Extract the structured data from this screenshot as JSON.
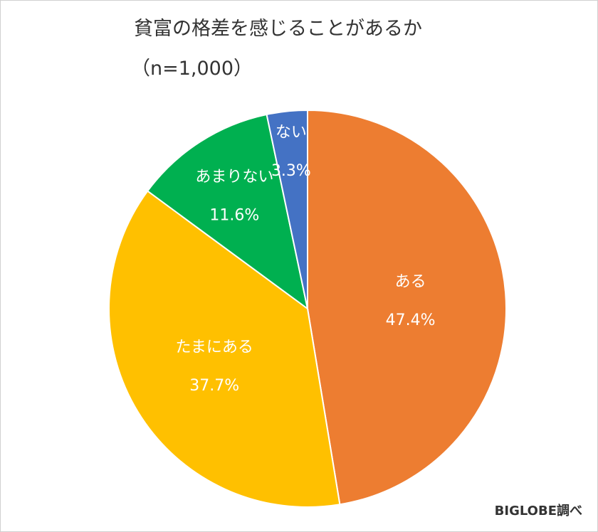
{
  "chart_data": {
    "type": "pie",
    "title": "貧富の格差を感じることがあるか",
    "subtitle": "（n=1,000）",
    "source": "BIGLOBE調べ",
    "unit": "%",
    "slices": [
      {
        "label": "ある",
        "value": 47.4,
        "display": "47.4%",
        "color": "#ED7D31"
      },
      {
        "label": "たまにある",
        "value": 37.7,
        "display": "37.7%",
        "color": "#FFC000"
      },
      {
        "label": "あまりない",
        "value": 11.6,
        "display": "11.6%",
        "color": "#00B050"
      },
      {
        "label": "ない",
        "value": 3.3,
        "display": "3.3%",
        "color": "#4472C4"
      }
    ]
  }
}
